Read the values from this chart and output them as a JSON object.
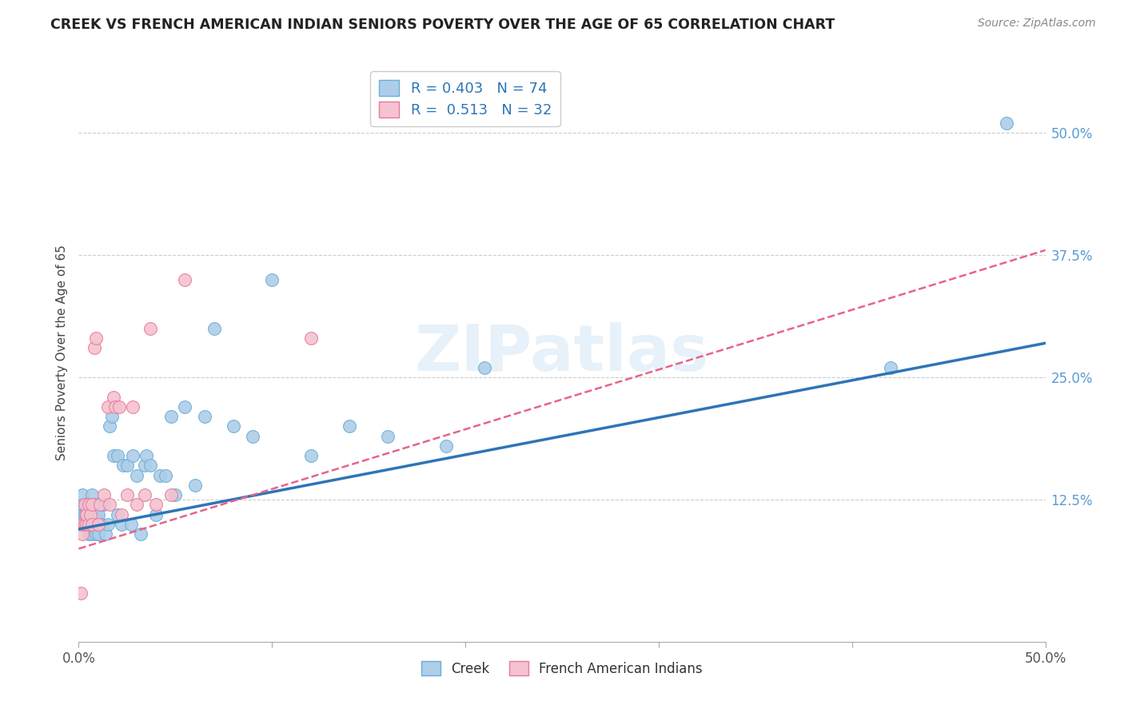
{
  "title": "CREEK VS FRENCH AMERICAN INDIAN SENIORS POVERTY OVER THE AGE OF 65 CORRELATION CHART",
  "source": "Source: ZipAtlas.com",
  "ylabel": "Seniors Poverty Over the Age of 65",
  "xlim": [
    0.0,
    0.5
  ],
  "ylim": [
    -0.02,
    0.57
  ],
  "ytick_labels_right": [
    "12.5%",
    "25.0%",
    "37.5%",
    "50.0%"
  ],
  "ytick_vals_right": [
    0.125,
    0.25,
    0.375,
    0.5
  ],
  "watermark": "ZIPatlas",
  "creek_color": "#AECDE8",
  "creek_edge_color": "#6AAED6",
  "fai_color": "#F4C2D0",
  "fai_edge_color": "#E87A9A",
  "creek_line_color": "#2E75B6",
  "fai_line_color": "#E8638A",
  "creek_R": 0.403,
  "creek_N": 74,
  "fai_R": 0.513,
  "fai_N": 32,
  "creek_x": [
    0.001,
    0.001,
    0.001,
    0.002,
    0.002,
    0.002,
    0.002,
    0.002,
    0.003,
    0.003,
    0.003,
    0.003,
    0.003,
    0.004,
    0.004,
    0.004,
    0.004,
    0.005,
    0.005,
    0.005,
    0.006,
    0.006,
    0.006,
    0.006,
    0.007,
    0.007,
    0.007,
    0.007,
    0.008,
    0.008,
    0.008,
    0.009,
    0.009,
    0.01,
    0.01,
    0.01,
    0.012,
    0.013,
    0.014,
    0.015,
    0.016,
    0.017,
    0.018,
    0.02,
    0.02,
    0.022,
    0.023,
    0.025,
    0.027,
    0.028,
    0.03,
    0.032,
    0.034,
    0.035,
    0.037,
    0.04,
    0.042,
    0.045,
    0.048,
    0.05,
    0.055,
    0.06,
    0.065,
    0.07,
    0.08,
    0.09,
    0.1,
    0.12,
    0.14,
    0.16,
    0.19,
    0.21,
    0.42,
    0.48
  ],
  "creek_y": [
    0.1,
    0.1,
    0.11,
    0.1,
    0.1,
    0.11,
    0.12,
    0.13,
    0.1,
    0.1,
    0.1,
    0.11,
    0.12,
    0.1,
    0.1,
    0.11,
    0.12,
    0.09,
    0.1,
    0.12,
    0.1,
    0.1,
    0.11,
    0.12,
    0.09,
    0.1,
    0.11,
    0.13,
    0.1,
    0.11,
    0.12,
    0.09,
    0.11,
    0.09,
    0.1,
    0.11,
    0.1,
    0.12,
    0.09,
    0.1,
    0.2,
    0.21,
    0.17,
    0.11,
    0.17,
    0.1,
    0.16,
    0.16,
    0.1,
    0.17,
    0.15,
    0.09,
    0.16,
    0.17,
    0.16,
    0.11,
    0.15,
    0.15,
    0.21,
    0.13,
    0.22,
    0.14,
    0.21,
    0.3,
    0.2,
    0.19,
    0.35,
    0.17,
    0.2,
    0.19,
    0.18,
    0.26,
    0.26,
    0.51
  ],
  "fai_x": [
    0.001,
    0.002,
    0.002,
    0.003,
    0.003,
    0.004,
    0.004,
    0.005,
    0.005,
    0.006,
    0.007,
    0.007,
    0.008,
    0.009,
    0.01,
    0.011,
    0.013,
    0.015,
    0.016,
    0.018,
    0.019,
    0.021,
    0.022,
    0.025,
    0.028,
    0.03,
    0.034,
    0.037,
    0.04,
    0.048,
    0.055,
    0.12
  ],
  "fai_y": [
    0.03,
    0.09,
    0.1,
    0.1,
    0.12,
    0.1,
    0.11,
    0.1,
    0.12,
    0.11,
    0.1,
    0.12,
    0.28,
    0.29,
    0.1,
    0.12,
    0.13,
    0.22,
    0.12,
    0.23,
    0.22,
    0.22,
    0.11,
    0.13,
    0.22,
    0.12,
    0.13,
    0.3,
    0.12,
    0.13,
    0.35,
    0.29
  ],
  "creek_line_x0": 0.0,
  "creek_line_y0": 0.095,
  "creek_line_x1": 0.5,
  "creek_line_y1": 0.285,
  "fai_line_x0": 0.0,
  "fai_line_y0": 0.075,
  "fai_line_x1": 0.5,
  "fai_line_y1": 0.38
}
